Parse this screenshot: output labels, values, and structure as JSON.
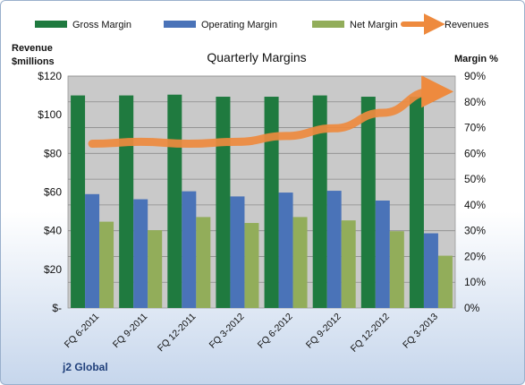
{
  "chart_data": {
    "type": "bar",
    "title": "Quarterly Margins",
    "categories": [
      "FQ 6-2011",
      "FQ 9-2011",
      "FQ 12-2011",
      "FQ 3-2012",
      "FQ 6-2012",
      "FQ 9-2012",
      "FQ 12-2012",
      "FQ 3-2013"
    ],
    "series": [
      {
        "name": "Gross Margin",
        "axis": "right",
        "color": "#1f7a3f",
        "values": [
          82.5,
          82.5,
          82.8,
          82,
          82,
          82.5,
          82,
          82
        ]
      },
      {
        "name": "Operating Margin",
        "axis": "right",
        "color": "#4a73b8",
        "values": [
          44.2,
          42.2,
          45.3,
          43.3,
          44.8,
          45.5,
          41.7,
          29
        ]
      },
      {
        "name": "Net Margin",
        "axis": "right",
        "color": "#92ad5a",
        "values": [
          33.5,
          30.2,
          35.3,
          33,
          35.3,
          34,
          29.8,
          20.3
        ]
      },
      {
        "name": "Revenues",
        "axis": "left",
        "type": "line",
        "color": "#ee8a3e",
        "values": [
          85,
          86,
          85,
          86,
          89,
          93,
          101,
          112
        ]
      }
    ],
    "y_left": {
      "label_line1": "Revenue",
      "label_line2": "$millions",
      "min": 0,
      "max": 120,
      "step": 20,
      "tick_labels": [
        "$-",
        "$20",
        "$40",
        "$60",
        "$80",
        "$100",
        "$120"
      ]
    },
    "y_right": {
      "label": "Margin %",
      "min": 0,
      "max": 90,
      "step": 10,
      "tick_labels": [
        "0%",
        "10%",
        "20%",
        "30%",
        "40%",
        "50%",
        "60%",
        "70%",
        "80%",
        "90%"
      ]
    },
    "grid": true,
    "legend_position": "top"
  },
  "footer": "j2 Global"
}
